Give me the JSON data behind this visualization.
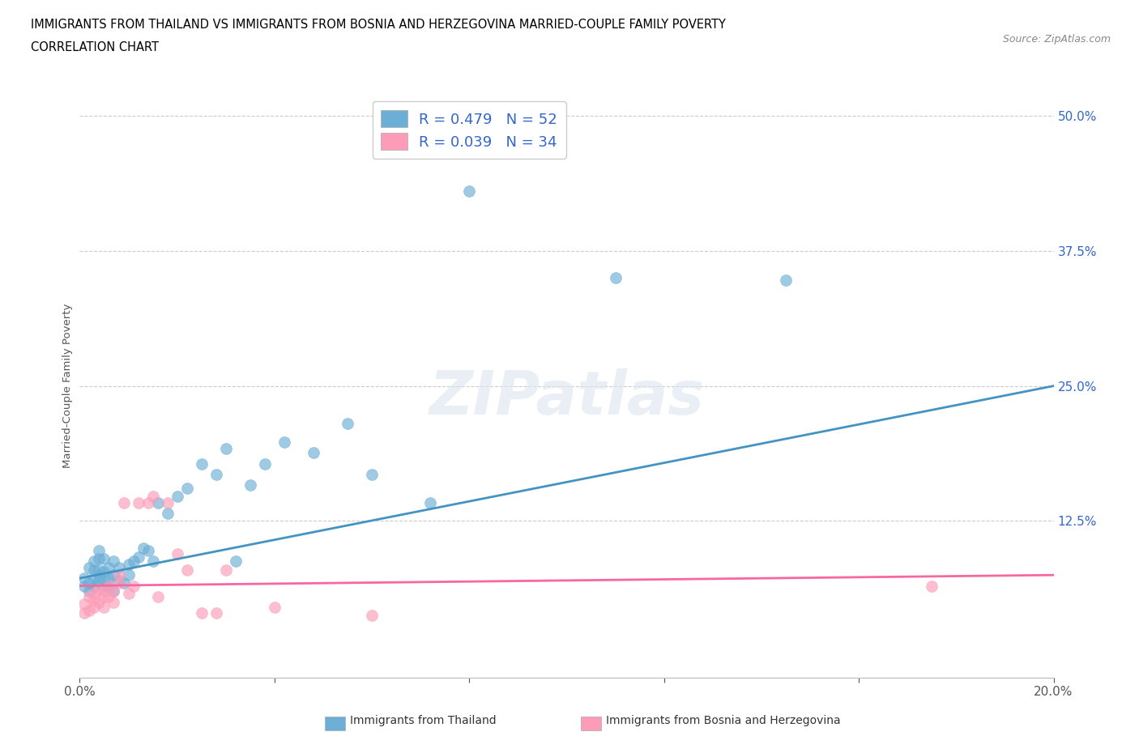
{
  "title_line1": "IMMIGRANTS FROM THAILAND VS IMMIGRANTS FROM BOSNIA AND HERZEGOVINA MARRIED-COUPLE FAMILY POVERTY",
  "title_line2": "CORRELATION CHART",
  "source_text": "Source: ZipAtlas.com",
  "ylabel": "Married-Couple Family Poverty",
  "xlim": [
    0.0,
    0.2
  ],
  "ylim": [
    -0.02,
    0.52
  ],
  "ytick_positions": [
    0.0,
    0.125,
    0.25,
    0.375,
    0.5
  ],
  "ytick_labels": [
    "",
    "12.5%",
    "25.0%",
    "37.5%",
    "50.0%"
  ],
  "thailand_color": "#6baed6",
  "bosnia_color": "#fc9cb8",
  "thailand_line_color": "#4393c3",
  "bosnia_line_color": "#f768a1",
  "R_thailand": 0.479,
  "N_thailand": 52,
  "R_bosnia": 0.039,
  "N_bosnia": 34,
  "legend_text_color": "#3366cc",
  "watermark_text": "ZIPatlas",
  "thailand_x": [
    0.001,
    0.001,
    0.002,
    0.002,
    0.002,
    0.003,
    0.003,
    0.003,
    0.003,
    0.004,
    0.004,
    0.004,
    0.004,
    0.004,
    0.005,
    0.005,
    0.005,
    0.005,
    0.006,
    0.006,
    0.006,
    0.007,
    0.007,
    0.007,
    0.008,
    0.008,
    0.009,
    0.01,
    0.01,
    0.011,
    0.012,
    0.013,
    0.014,
    0.015,
    0.016,
    0.018,
    0.02,
    0.022,
    0.025,
    0.028,
    0.03,
    0.032,
    0.035,
    0.038,
    0.042,
    0.048,
    0.055,
    0.06,
    0.072,
    0.08,
    0.11,
    0.145
  ],
  "thailand_y": [
    0.072,
    0.065,
    0.06,
    0.068,
    0.082,
    0.065,
    0.072,
    0.08,
    0.088,
    0.07,
    0.075,
    0.08,
    0.09,
    0.098,
    0.065,
    0.07,
    0.078,
    0.09,
    0.065,
    0.072,
    0.082,
    0.06,
    0.075,
    0.088,
    0.07,
    0.082,
    0.068,
    0.075,
    0.085,
    0.088,
    0.092,
    0.1,
    0.098,
    0.088,
    0.142,
    0.132,
    0.148,
    0.155,
    0.178,
    0.168,
    0.192,
    0.088,
    0.158,
    0.178,
    0.198,
    0.188,
    0.215,
    0.168,
    0.142,
    0.43,
    0.35,
    0.348
  ],
  "bosnia_x": [
    0.001,
    0.001,
    0.002,
    0.002,
    0.003,
    0.003,
    0.003,
    0.004,
    0.004,
    0.005,
    0.005,
    0.005,
    0.006,
    0.006,
    0.007,
    0.007,
    0.008,
    0.008,
    0.009,
    0.01,
    0.011,
    0.012,
    0.014,
    0.015,
    0.016,
    0.018,
    0.02,
    0.022,
    0.025,
    0.028,
    0.03,
    0.04,
    0.06,
    0.175
  ],
  "bosnia_y": [
    0.04,
    0.048,
    0.042,
    0.055,
    0.058,
    0.045,
    0.052,
    0.05,
    0.062,
    0.045,
    0.055,
    0.06,
    0.065,
    0.055,
    0.05,
    0.06,
    0.068,
    0.075,
    0.142,
    0.058,
    0.065,
    0.142,
    0.142,
    0.148,
    0.055,
    0.142,
    0.095,
    0.08,
    0.04,
    0.04,
    0.08,
    0.045,
    0.038,
    0.065
  ]
}
